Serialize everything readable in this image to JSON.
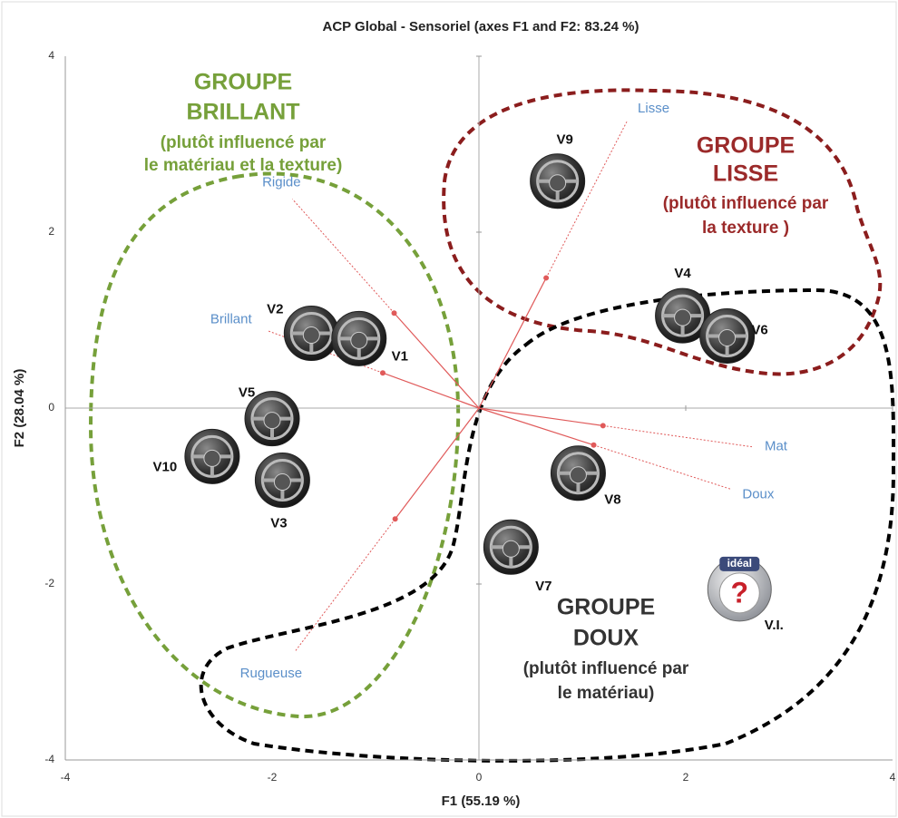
{
  "chart_data": {
    "type": "biplot",
    "title": "ACP Global - Sensoriel (axes F1 and F2: 83.24 %)",
    "x_label": "F1 (55.19 %)",
    "y_label": "F2 (28.04 %)",
    "xlim": [
      -4,
      4
    ],
    "ylim": [
      -4,
      4
    ],
    "xticks": [
      -4,
      -2,
      0,
      2,
      4
    ],
    "yticks": [
      -4,
      -2,
      0,
      2,
      4
    ],
    "observations": {
      "names": [
        "V9",
        "V4",
        "V6",
        "V2",
        "V1",
        "V5",
        "V10",
        "V3",
        "V8",
        "V7",
        "V.I."
      ],
      "x": [
        0.76,
        1.97,
        2.4,
        -1.62,
        -1.16,
        -2.0,
        -2.58,
        -1.9,
        0.96,
        0.31,
        2.52
      ],
      "y": [
        2.58,
        1.05,
        0.82,
        0.85,
        0.79,
        -0.12,
        -0.55,
        -0.82,
        -0.74,
        -1.58,
        -2.06
      ]
    },
    "ideal_badge": {
      "tag": "idéal",
      "symbol": "?"
    },
    "variables": {
      "names": [
        "Lisse",
        "Rigide",
        "Brillant",
        "Mat",
        "Doux",
        "Rugueuse"
      ],
      "x": [
        0.65,
        -0.82,
        -0.93,
        1.2,
        1.11,
        -0.81
      ],
      "y": [
        1.48,
        1.08,
        0.4,
        -0.2,
        -0.42,
        -1.26
      ],
      "color": "#e05a5a",
      "label_color": "#5b8fc9"
    },
    "groups": [
      {
        "title_lines": [
          "GROUPE",
          "BRILLANT"
        ],
        "note_lines": [
          "(plutôt influencé par",
          "le matériau et la texture)"
        ],
        "color": "#76a03a"
      },
      {
        "title_lines": [
          "GROUPE",
          "LISSE"
        ],
        "note_lines": [
          "(plutôt influencé par",
          "la texture )"
        ],
        "color": "#9b2a2a"
      },
      {
        "title_lines": [
          "GROUPE",
          "DOUX"
        ],
        "note_lines": [
          "(plutôt influencé par",
          "le matériau)"
        ],
        "color": "#333333"
      }
    ]
  }
}
